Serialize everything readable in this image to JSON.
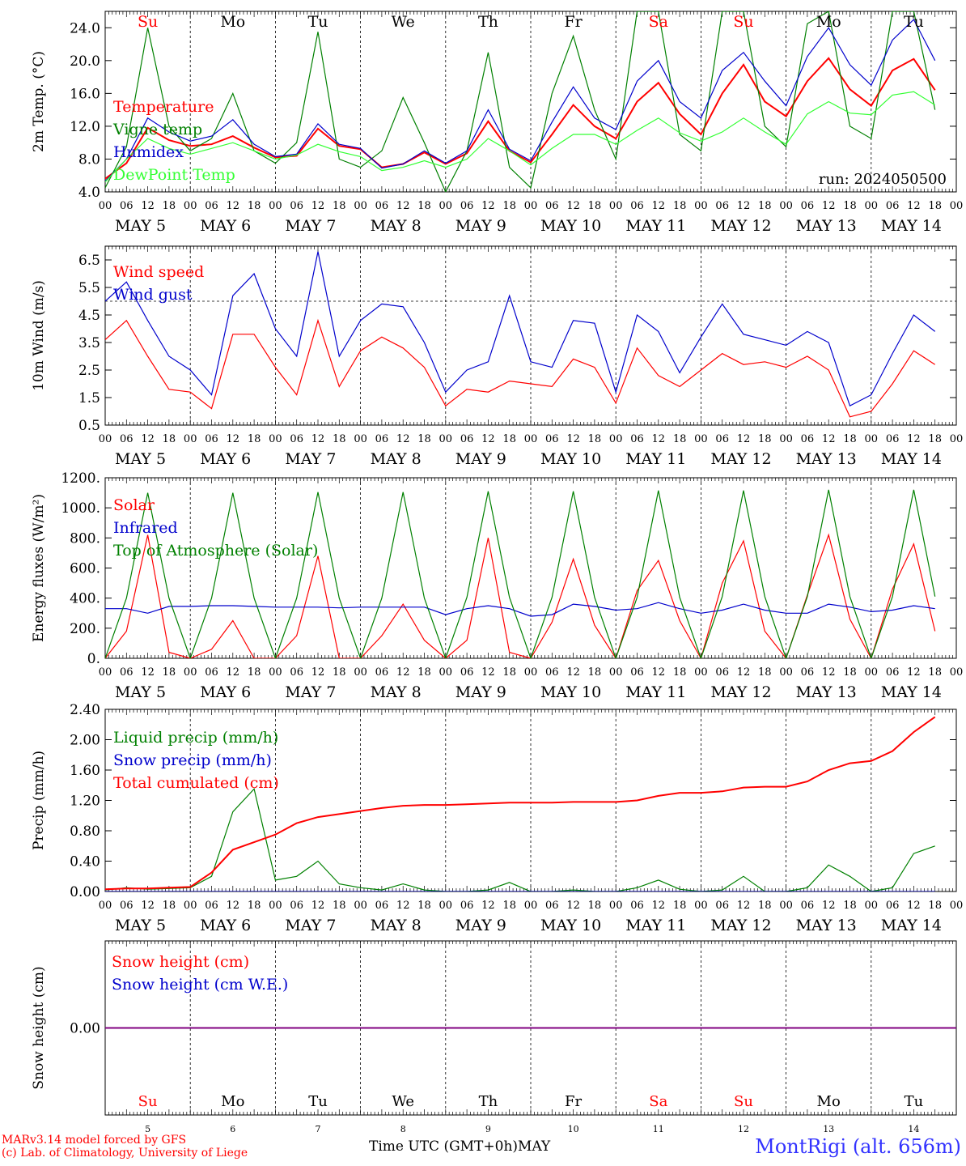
{
  "meteogram": {
    "days": [
      "5",
      "6",
      "7",
      "8",
      "9",
      "10",
      "11",
      "12",
      "13",
      "14"
    ],
    "day_date_labels": [
      "MAY  5",
      "MAY  6",
      "MAY  7",
      "MAY  8",
      "MAY  9",
      "MAY 10",
      "MAY 11",
      "MAY 12",
      "MAY 13",
      "MAY 14"
    ],
    "weekdays": [
      {
        "label": "Su",
        "weekend": true
      },
      {
        "label": "Mo",
        "weekend": false
      },
      {
        "label": "Tu",
        "weekend": false
      },
      {
        "label": "We",
        "weekend": false
      },
      {
        "label": "Th",
        "weekend": false
      },
      {
        "label": "Fr",
        "weekend": false
      },
      {
        "label": "Sa",
        "weekend": true
      },
      {
        "label": "Su",
        "weekend": true
      },
      {
        "label": "Mo",
        "weekend": false
      },
      {
        "label": "Tu",
        "weekend": false
      }
    ],
    "hour_ticks": [
      "00",
      "06",
      "12",
      "18"
    ],
    "weekend_color": "#ff0000",
    "weekday_color": "#000000",
    "footer": {
      "model_line1": "MARv3.14 model forced by GFS",
      "model_line2": "(c) Lab. of Climatology, University of Liege",
      "time_axis_label": "Time UTC (GMT+0h)",
      "month_label": "MAY",
      "station": "MontRigi (alt. 656m)",
      "station_color": "#3333ff",
      "credit_color": "#ff0000"
    }
  },
  "chart_data": [
    {
      "type": "line",
      "ylabel": "2m Temp. (°C)",
      "ylim": [
        4.0,
        26.0
      ],
      "yticks": [
        "4.0",
        "8.0",
        "12.0",
        "16.0",
        "20.0",
        "24.0"
      ],
      "annotation": "run: 2024050500",
      "x": {
        "unit": "hours since 2024-05-05 00 UTC",
        "start": 0,
        "step": 6
      },
      "series": [
        {
          "name": "Temperature",
          "color": "#ff0000",
          "values": [
            5.6,
            7.5,
            11.8,
            10.3,
            9.6,
            9.8,
            10.8,
            9.4,
            8.2,
            8.4,
            11.7,
            9.6,
            9.2,
            7.0,
            7.4,
            8.8,
            7.4,
            8.7,
            12.6,
            9.0,
            7.6,
            11.0,
            14.6,
            12.0,
            10.5,
            15.0,
            17.3,
            13.5,
            11.0,
            16.0,
            19.5,
            15.0,
            13.2,
            17.5,
            20.3,
            16.5,
            14.5,
            18.8,
            20.2,
            16.4
          ]
        },
        {
          "name": "Vigne temp",
          "color": "#008000",
          "values": [
            4.5,
            9.5,
            24.0,
            12.0,
            9.0,
            10.5,
            16.0,
            9.0,
            7.5,
            10.0,
            23.5,
            8.0,
            7.0,
            9.0,
            15.5,
            10.0,
            4.0,
            9.0,
            21.0,
            7.0,
            4.5,
            16.0,
            23.0,
            14.0,
            8.0,
            26.0,
            26.0,
            11.0,
            9.0,
            26.0,
            26.0,
            12.0,
            9.5,
            24.5,
            26.0,
            12.0,
            10.5,
            26.0,
            26.0,
            14.0
          ]
        },
        {
          "name": "Humidex",
          "color": "#0000cc",
          "values": [
            5.3,
            8.0,
            13.0,
            11.3,
            10.2,
            10.8,
            12.8,
            9.8,
            8.3,
            8.6,
            12.3,
            9.8,
            9.3,
            6.9,
            7.4,
            9.0,
            7.5,
            9.0,
            14.0,
            9.2,
            7.8,
            12.5,
            16.8,
            13.0,
            11.6,
            17.5,
            20.0,
            15.0,
            13.0,
            18.8,
            21.0,
            17.5,
            14.5,
            20.5,
            24.0,
            19.5,
            17.0,
            22.5,
            25.0,
            20.0
          ]
        },
        {
          "name": "DewPoint Temp",
          "color": "#33ff33",
          "values": [
            5.2,
            8.0,
            10.5,
            9.3,
            8.6,
            9.3,
            10.0,
            9.0,
            8.0,
            8.5,
            9.8,
            8.9,
            8.3,
            6.6,
            7.0,
            7.8,
            7.0,
            8.0,
            10.5,
            9.0,
            7.3,
            9.3,
            11.0,
            11.0,
            9.8,
            11.5,
            13.0,
            11.2,
            10.2,
            11.3,
            13.0,
            11.3,
            9.8,
            13.5,
            15.0,
            13.6,
            13.4,
            15.8,
            16.2,
            14.6
          ]
        }
      ]
    },
    {
      "type": "line",
      "ylabel": "10m Wind (m/s)",
      "ylim": [
        0.5,
        7.0
      ],
      "yticks": [
        "0.5",
        "1.5",
        "2.5",
        "3.5",
        "4.5",
        "5.5",
        "6.5"
      ],
      "reference_line": 5.0,
      "x": {
        "unit": "hours since 2024-05-05 00 UTC",
        "start": 0,
        "step": 6
      },
      "series": [
        {
          "name": "Wind speed",
          "color": "#ff0000",
          "values": [
            3.6,
            4.3,
            3.0,
            1.8,
            1.7,
            1.1,
            3.8,
            3.8,
            2.6,
            1.6,
            4.3,
            1.9,
            3.2,
            3.7,
            3.3,
            2.6,
            1.2,
            1.8,
            1.7,
            2.1,
            2.0,
            1.9,
            2.9,
            2.6,
            1.3,
            3.3,
            2.3,
            1.9,
            2.5,
            3.1,
            2.7,
            2.8,
            2.6,
            3.0,
            2.5,
            0.8,
            1.0,
            2.0,
            3.2,
            2.7
          ]
        },
        {
          "name": "Wind gust",
          "color": "#0000cc",
          "values": [
            5.0,
            5.7,
            4.3,
            3.0,
            2.5,
            1.6,
            5.2,
            6.0,
            4.0,
            3.0,
            6.8,
            3.0,
            4.3,
            4.9,
            4.8,
            3.5,
            1.7,
            2.5,
            2.8,
            5.2,
            2.8,
            2.6,
            4.3,
            4.2,
            1.7,
            4.5,
            3.9,
            2.4,
            3.7,
            4.9,
            3.8,
            3.6,
            3.4,
            3.9,
            3.5,
            1.2,
            1.6,
            3.1,
            4.5,
            3.9
          ]
        }
      ]
    },
    {
      "type": "line",
      "ylabel": "Energy fluxes (W/m²)",
      "ylim": [
        0,
        1200
      ],
      "yticks": [
        "0.",
        "200.",
        "400.",
        "600.",
        "800.",
        "1000.",
        "1200."
      ],
      "x": {
        "unit": "hours since 2024-05-05 00 UTC",
        "start": 0,
        "step": 6
      },
      "series": [
        {
          "name": "Solar",
          "color": "#ff0000",
          "values": [
            0,
            180,
            820,
            40,
            0,
            60,
            250,
            0,
            0,
            150,
            680,
            0,
            0,
            150,
            360,
            120,
            0,
            120,
            800,
            40,
            0,
            240,
            660,
            220,
            0,
            450,
            650,
            250,
            0,
            500,
            780,
            180,
            0,
            420,
            820,
            260,
            0,
            460,
            760,
            180
          ]
        },
        {
          "name": "Infrared",
          "color": "#0000cc",
          "values": [
            330,
            330,
            300,
            345,
            345,
            350,
            350,
            345,
            340,
            340,
            340,
            335,
            340,
            340,
            340,
            340,
            290,
            330,
            350,
            330,
            280,
            290,
            360,
            345,
            320,
            330,
            370,
            330,
            300,
            320,
            360,
            320,
            300,
            300,
            360,
            340,
            310,
            320,
            350,
            330
          ]
        },
        {
          "name": "Top of Atmosphere (Solar)",
          "color": "#008000",
          "values": [
            0,
            400,
            1100,
            400,
            0,
            400,
            1100,
            400,
            0,
            400,
            1105,
            400,
            0,
            400,
            1105,
            400,
            0,
            405,
            1110,
            405,
            0,
            405,
            1110,
            405,
            0,
            405,
            1115,
            405,
            0,
            410,
            1115,
            410,
            0,
            410,
            1120,
            410,
            0,
            410,
            1120,
            410
          ]
        }
      ]
    },
    {
      "type": "line",
      "ylabel": "Precip (mm/h)",
      "ylim": [
        0.0,
        2.4
      ],
      "yticks": [
        "0.00",
        "0.40",
        "0.80",
        "1.20",
        "1.60",
        "2.00",
        "2.40"
      ],
      "x": {
        "unit": "hours since 2024-05-05 00 UTC",
        "start": 0,
        "step": 6
      },
      "series": [
        {
          "name": "Liquid precip (mm/h)",
          "color": "#008000",
          "values": [
            0.02,
            0.05,
            0.03,
            0.04,
            0.05,
            0.2,
            1.05,
            1.35,
            0.15,
            0.2,
            0.4,
            0.1,
            0.05,
            0.02,
            0.1,
            0.02,
            0.0,
            0.0,
            0.02,
            0.12,
            0.0,
            0.0,
            0.02,
            0.0,
            0.0,
            0.05,
            0.15,
            0.03,
            0.0,
            0.02,
            0.2,
            0.0,
            0.0,
            0.05,
            0.35,
            0.2,
            0.0,
            0.05,
            0.5,
            0.6
          ]
        },
        {
          "name": "Snow precip (mm/h)",
          "color": "#0000cc",
          "values": [
            0,
            0,
            0,
            0,
            0,
            0,
            0,
            0,
            0,
            0,
            0,
            0,
            0,
            0,
            0,
            0,
            0,
            0,
            0,
            0,
            0,
            0,
            0,
            0,
            0,
            0,
            0,
            0,
            0,
            0,
            0,
            0,
            0,
            0,
            0,
            0,
            0,
            0,
            0,
            0
          ]
        },
        {
          "name": "Total cumulated (cm)",
          "color": "#ff0000",
          "values": [
            0.03,
            0.04,
            0.04,
            0.05,
            0.06,
            0.25,
            0.55,
            0.65,
            0.75,
            0.9,
            0.98,
            1.02,
            1.06,
            1.1,
            1.13,
            1.14,
            1.14,
            1.15,
            1.16,
            1.17,
            1.17,
            1.17,
            1.18,
            1.18,
            1.18,
            1.2,
            1.26,
            1.3,
            1.3,
            1.32,
            1.37,
            1.38,
            1.38,
            1.45,
            1.6,
            1.69,
            1.72,
            1.85,
            2.1,
            2.3
          ]
        }
      ]
    },
    {
      "type": "line",
      "ylabel": "Snow height (cm)",
      "ylim": [
        -1.0,
        1.0
      ],
      "yticks": [
        "0.00"
      ],
      "x": {
        "unit": "hours since 2024-05-05 00 UTC",
        "start": 0,
        "step": 6
      },
      "series": [
        {
          "name": "Snow height (cm)",
          "color": "#ff0000",
          "values": [
            0,
            0
          ]
        },
        {
          "name": "Snow height (cm W.E.)",
          "color": "#0000cc",
          "values": [
            0,
            0
          ]
        }
      ]
    }
  ]
}
